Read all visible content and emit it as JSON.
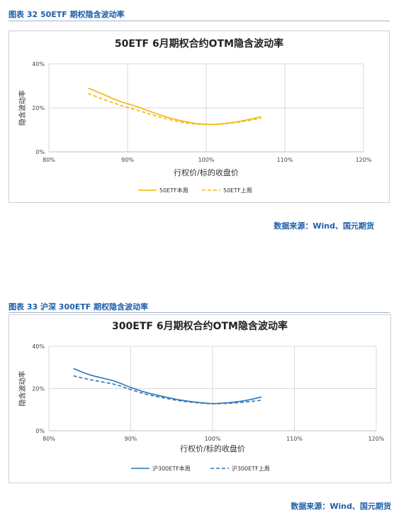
{
  "figures": [
    {
      "caption": "图表 32 50ETF 期权隐含波动率",
      "source": "数据来源：Wind、国元期货",
      "colors": {
        "current": "#f2b705",
        "previous": "#f2b705"
      },
      "chart_data": {
        "type": "line",
        "title": "50ETF 6月期权合约OTM隐含波动率",
        "xlabel": "行权价/标的收盘价",
        "ylabel": "隐含波动率",
        "xlim": [
          80,
          120
        ],
        "ylim": [
          0,
          40
        ],
        "x_ticks": [
          "80%",
          "90%",
          "100%",
          "110%",
          "120%"
        ],
        "y_ticks": [
          "0%",
          "20%",
          "40%"
        ],
        "grid": true,
        "legend_position": "bottom",
        "series": [
          {
            "name": "50ETF本周",
            "style": "solid",
            "x": [
              85,
              87,
              89,
              91,
              93,
              95,
              97,
              99,
              101,
              103,
              105,
              107
            ],
            "y": [
              29.0,
              26.0,
              23.0,
              20.8,
              18.2,
              15.8,
              14.0,
              12.8,
              12.5,
              13.2,
              14.4,
              16.0
            ]
          },
          {
            "name": "50ETF上周",
            "style": "dashed",
            "x": [
              85,
              87,
              89,
              91,
              93,
              95,
              97,
              99,
              101,
              103,
              105,
              107
            ],
            "y": [
              26.5,
              23.8,
              21.3,
              19.2,
              17.0,
              15.0,
              13.4,
              12.6,
              12.4,
              13.0,
              14.0,
              15.3
            ]
          }
        ]
      }
    },
    {
      "caption": "图表 33 沪深 300ETF 期权隐含波动率",
      "source": "数据来源：Wind、国元期货",
      "colors": {
        "current": "#2e75b6",
        "previous": "#2e75b6"
      },
      "chart_data": {
        "type": "line",
        "title": "300ETF 6月期权合约OTM隐含波动率",
        "xlabel": "行权价/标的收盘价",
        "ylabel": "隐含波动率",
        "xlim": [
          80,
          120
        ],
        "ylim": [
          0,
          40
        ],
        "x_ticks": [
          "80%",
          "90%",
          "100%",
          "110%",
          "120%"
        ],
        "y_ticks": [
          "0%",
          "20%",
          "40%"
        ],
        "grid": true,
        "legend_position": "bottom",
        "series": [
          {
            "name": "沪300ETF本周",
            "style": "solid",
            "x": [
              83,
              85,
              88,
              90,
              92,
              94,
              96,
              98,
              100,
              102,
              104,
              106
            ],
            "y": [
              29.5,
              26.5,
              23.5,
              20.5,
              18.0,
              16.2,
              14.6,
              13.5,
              12.9,
              13.3,
              14.3,
              16.0
            ]
          },
          {
            "name": "沪300ETF上周",
            "style": "dashed",
            "x": [
              83,
              85,
              88,
              90,
              92,
              94,
              96,
              98,
              100,
              102,
              104,
              106
            ],
            "y": [
              26.0,
              24.2,
              22.0,
              19.5,
              17.2,
              15.6,
              14.2,
              13.3,
              12.8,
              13.0,
              13.6,
              14.5
            ]
          }
        ]
      }
    }
  ]
}
